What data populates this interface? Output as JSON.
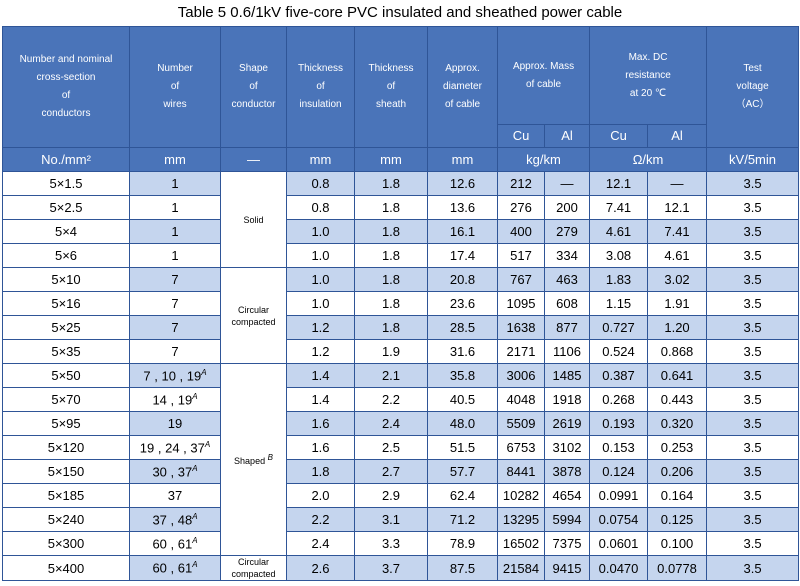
{
  "caption": "Table 5    0.6/1kV five-core PVC insulated and sheathed power cable",
  "headers": {
    "conductor": [
      "Number and nominal",
      "cross-section",
      "of",
      "conductors"
    ],
    "wires": [
      "Number",
      "of",
      "wires"
    ],
    "shape": [
      "Shape",
      "of",
      "conductor"
    ],
    "insulation": [
      "Thickness",
      "of",
      "insulation"
    ],
    "sheath": [
      "Thickness",
      "of",
      "sheath"
    ],
    "diameter": [
      "Approx.",
      "diameter",
      "of cable"
    ],
    "mass": [
      "Approx. Mass",
      "of cable"
    ],
    "resistance": [
      "Max. DC",
      "resistance",
      "at 20 ℃"
    ],
    "voltage": [
      "Test",
      "voltage",
      "（AC）"
    ],
    "cu": "Cu",
    "al": "Al"
  },
  "units": [
    "No./mm²",
    "mm",
    "—",
    "mm",
    "mm",
    "mm",
    "kg/km",
    "Ω/km",
    "kV/5min"
  ],
  "shapes": {
    "solid": "Solid",
    "circular_compacted": "Circular compacted",
    "shaped": "Shaped",
    "shaped_sup": "B",
    "circular_compacted_last": "Circular compacted"
  },
  "rows": [
    {
      "size": "5×1.5",
      "wires": "1",
      "wires_sup": "",
      "ins": "0.8",
      "sheath": "1.8",
      "dia": "12.6",
      "mcu": "212",
      "mal": "—",
      "rcu": "12.1",
      "ral": "—",
      "v": "3.5"
    },
    {
      "size": "5×2.5",
      "wires": "1",
      "wires_sup": "",
      "ins": "0.8",
      "sheath": "1.8",
      "dia": "13.6",
      "mcu": "276",
      "mal": "200",
      "rcu": "7.41",
      "ral": "12.1",
      "v": "3.5"
    },
    {
      "size": "5×4",
      "wires": "1",
      "wires_sup": "",
      "ins": "1.0",
      "sheath": "1.8",
      "dia": "16.1",
      "mcu": "400",
      "mal": "279",
      "rcu": "4.61",
      "ral": "7.41",
      "v": "3.5"
    },
    {
      "size": "5×6",
      "wires": "1",
      "wires_sup": "",
      "ins": "1.0",
      "sheath": "1.8",
      "dia": "17.4",
      "mcu": "517",
      "mal": "334",
      "rcu": "3.08",
      "ral": "4.61",
      "v": "3.5"
    },
    {
      "size": "5×10",
      "wires": "7",
      "wires_sup": "",
      "ins": "1.0",
      "sheath": "1.8",
      "dia": "20.8",
      "mcu": "767",
      "mal": "463",
      "rcu": "1.83",
      "ral": "3.02",
      "v": "3.5"
    },
    {
      "size": "5×16",
      "wires": "7",
      "wires_sup": "",
      "ins": "1.0",
      "sheath": "1.8",
      "dia": "23.6",
      "mcu": "1095",
      "mal": "608",
      "rcu": "1.15",
      "ral": "1.91",
      "v": "3.5"
    },
    {
      "size": "5×25",
      "wires": "7",
      "wires_sup": "",
      "ins": "1.2",
      "sheath": "1.8",
      "dia": "28.5",
      "mcu": "1638",
      "mal": "877",
      "rcu": "0.727",
      "ral": "1.20",
      "v": "3.5"
    },
    {
      "size": "5×35",
      "wires": "7",
      "wires_sup": "",
      "ins": "1.2",
      "sheath": "1.9",
      "dia": "31.6",
      "mcu": "2171",
      "mal": "1106",
      "rcu": "0.524",
      "ral": "0.868",
      "v": "3.5"
    },
    {
      "size": "5×50",
      "wires": "7 , 10 , 19",
      "wires_sup": "A",
      "ins": "1.4",
      "sheath": "2.1",
      "dia": "35.8",
      "mcu": "3006",
      "mal": "1485",
      "rcu": "0.387",
      "ral": "0.641",
      "v": "3.5"
    },
    {
      "size": "5×70",
      "wires": "14 , 19",
      "wires_sup": "A",
      "ins": "1.4",
      "sheath": "2.2",
      "dia": "40.5",
      "mcu": "4048",
      "mal": "1918",
      "rcu": "0.268",
      "ral": "0.443",
      "v": "3.5"
    },
    {
      "size": "5×95",
      "wires": "19",
      "wires_sup": "",
      "ins": "1.6",
      "sheath": "2.4",
      "dia": "48.0",
      "mcu": "5509",
      "mal": "2619",
      "rcu": "0.193",
      "ral": "0.320",
      "v": "3.5"
    },
    {
      "size": "5×120",
      "wires": "19 , 24 , 37",
      "wires_sup": "A",
      "ins": "1.6",
      "sheath": "2.5",
      "dia": "51.5",
      "mcu": "6753",
      "mal": "3102",
      "rcu": "0.153",
      "ral": "0.253",
      "v": "3.5"
    },
    {
      "size": "5×150",
      "wires": "30 , 37",
      "wires_sup": "A",
      "ins": "1.8",
      "sheath": "2.7",
      "dia": "57.7",
      "mcu": "8441",
      "mal": "3878",
      "rcu": "0.124",
      "ral": "0.206",
      "v": "3.5"
    },
    {
      "size": "5×185",
      "wires": "37",
      "wires_sup": "",
      "ins": "2.0",
      "sheath": "2.9",
      "dia": "62.4",
      "mcu": "10282",
      "mal": "4654",
      "rcu": "0.0991",
      "ral": "0.164",
      "v": "3.5"
    },
    {
      "size": "5×240",
      "wires": "37 , 48",
      "wires_sup": "A",
      "ins": "2.2",
      "sheath": "3.1",
      "dia": "71.2",
      "mcu": "13295",
      "mal": "5994",
      "rcu": "0.0754",
      "ral": "0.125",
      "v": "3.5"
    },
    {
      "size": "5×300",
      "wires": "60 , 61",
      "wires_sup": "A",
      "ins": "2.4",
      "sheath": "3.3",
      "dia": "78.9",
      "mcu": "16502",
      "mal": "7375",
      "rcu": "0.0601",
      "ral": "0.100",
      "v": "3.5"
    },
    {
      "size": "5×400",
      "wires": "60 , 61",
      "wires_sup": "A",
      "ins": "2.6",
      "sheath": "3.7",
      "dia": "87.5",
      "mcu": "21584",
      "mal": "9415",
      "rcu": "0.0470",
      "ral": "0.0778",
      "v": "3.5"
    }
  ],
  "colors": {
    "header": "#4a74b9",
    "stripe": "#c5d5ee",
    "border": "#2f5597"
  }
}
